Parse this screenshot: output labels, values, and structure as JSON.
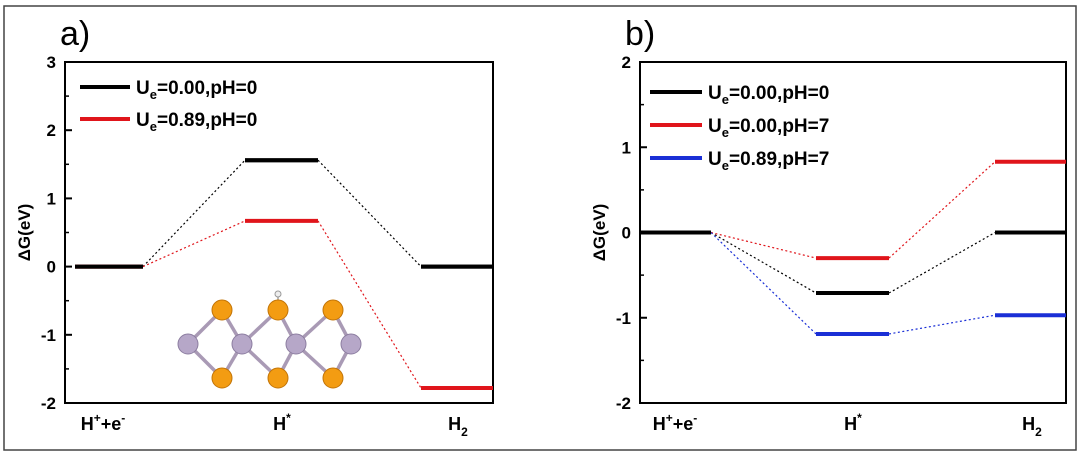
{
  "chart_data": [
    {
      "type": "line",
      "panel_label": "a)",
      "ylabel": "ΔG(eV)",
      "ylim": [
        -2,
        3
      ],
      "yticks": [
        "3",
        "2",
        "1",
        "0",
        "-1",
        "-2"
      ],
      "ytick_values": [
        3,
        2,
        1,
        0,
        -1,
        -2
      ],
      "categories": [
        {
          "main": "H",
          "sup": "+",
          "mid": "+e",
          "sup2": "-",
          "sub": ""
        },
        {
          "main": "H",
          "sup": "*",
          "mid": "",
          "sup2": "",
          "sub": ""
        },
        {
          "main": "H",
          "sup": "",
          "mid": "",
          "sup2": "",
          "sub": "2"
        }
      ],
      "series": [
        {
          "name_main": "U",
          "name_sub": "e",
          "name_rest": "=0.00,pH=0",
          "color": "#000000",
          "values": [
            0,
            1.56,
            0
          ]
        },
        {
          "name_main": "U",
          "name_sub": "e",
          "name_rest": "=0.89,pH=0",
          "color": "#e0151b",
          "values": [
            0,
            0.67,
            -1.78
          ]
        }
      ],
      "legend_position": "top-left",
      "inset": "MoS2 structure with adsorbed H (orange S atoms, grey-violet Mo atoms)"
    },
    {
      "type": "line",
      "panel_label": "b)",
      "ylabel": "ΔG(eV)",
      "ylim": [
        -2,
        2
      ],
      "yticks": [
        "2",
        "1",
        "0",
        "-1",
        "-2"
      ],
      "ytick_values": [
        2,
        1,
        0,
        -1,
        -2
      ],
      "categories": [
        {
          "main": "H",
          "sup": "+",
          "mid": "+e",
          "sup2": "-",
          "sub": ""
        },
        {
          "main": "H",
          "sup": "*",
          "mid": "",
          "sup2": "",
          "sub": ""
        },
        {
          "main": "H",
          "sup": "",
          "mid": "",
          "sup2": "",
          "sub": "2"
        }
      ],
      "series": [
        {
          "name_main": "U",
          "name_sub": "e",
          "name_rest": "=0.00,pH=0",
          "color": "#000000",
          "values": [
            0,
            -0.71,
            0
          ]
        },
        {
          "name_main": "U",
          "name_sub": "e",
          "name_rest": "=0.00,pH=7",
          "color": "#e0151b",
          "values": [
            0,
            -0.3,
            0.83
          ]
        },
        {
          "name_main": "U",
          "name_sub": "e",
          "name_rest": "=0.89,pH=7",
          "color": "#1a2fd6",
          "values": [
            0,
            -1.19,
            -0.97
          ]
        }
      ],
      "legend_position": "top-left"
    }
  ]
}
